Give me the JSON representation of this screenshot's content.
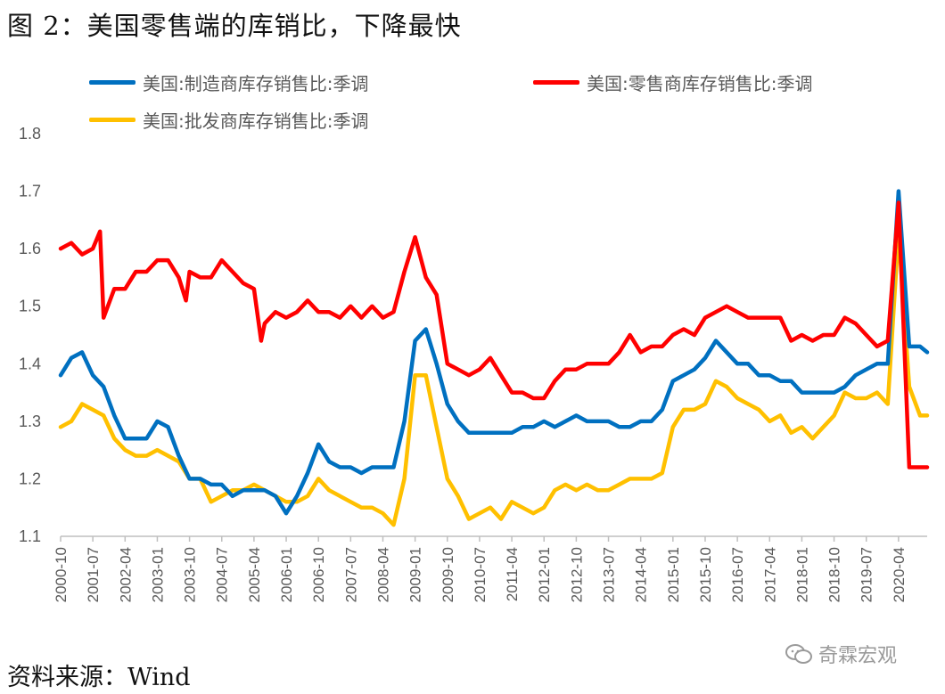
{
  "figure": {
    "title": "图 2：美国零售端的库销比，下降最快",
    "source": "资料来源：Wind",
    "watermark": "奇霖宏观"
  },
  "colors": {
    "manufacturing": "#0070C0",
    "retail": "#FF0000",
    "wholesale": "#FFC000",
    "axis": "#BFBFBF",
    "text": "#595959"
  },
  "chart_data": {
    "type": "line",
    "title": "美国零售端的库销比，下降最快",
    "xlabel": "",
    "ylabel": "",
    "ylim": [
      1.1,
      1.8
    ],
    "yticks": [
      "1.1",
      "1.2",
      "1.3",
      "1.4",
      "1.5",
      "1.6",
      "1.7",
      "1.8"
    ],
    "xticks": [
      "2000-10",
      "2001-07",
      "2002-04",
      "2003-01",
      "2003-10",
      "2004-07",
      "2005-04",
      "2006-01",
      "2006-10",
      "2007-07",
      "2008-04",
      "2009-01",
      "2009-10",
      "2010-07",
      "2011-04",
      "2012-01",
      "2012-10",
      "2013-07",
      "2014-04",
      "2015-01",
      "2015-10",
      "2016-07",
      "2017-04",
      "2018-01",
      "2018-10",
      "2019-07",
      "2020-04"
    ],
    "x_start": "2000-10",
    "x_end": "2020-12",
    "grid": false,
    "legend": "top",
    "series": [
      {
        "key": "manufacturing",
        "name": "美国:制造商库存销售比:季调",
        "points": [
          [
            "2000-10",
            1.38
          ],
          [
            "2001-01",
            1.41
          ],
          [
            "2001-04",
            1.42
          ],
          [
            "2001-07",
            1.38
          ],
          [
            "2001-10",
            1.36
          ],
          [
            "2002-01",
            1.31
          ],
          [
            "2002-04",
            1.27
          ],
          [
            "2002-07",
            1.27
          ],
          [
            "2002-10",
            1.27
          ],
          [
            "2003-01",
            1.3
          ],
          [
            "2003-04",
            1.29
          ],
          [
            "2003-07",
            1.24
          ],
          [
            "2003-10",
            1.2
          ],
          [
            "2004-01",
            1.2
          ],
          [
            "2004-04",
            1.19
          ],
          [
            "2004-07",
            1.19
          ],
          [
            "2004-10",
            1.17
          ],
          [
            "2005-01",
            1.18
          ],
          [
            "2005-04",
            1.18
          ],
          [
            "2005-07",
            1.18
          ],
          [
            "2005-10",
            1.17
          ],
          [
            "2006-01",
            1.14
          ],
          [
            "2006-04",
            1.17
          ],
          [
            "2006-07",
            1.21
          ],
          [
            "2006-10",
            1.26
          ],
          [
            "2007-01",
            1.23
          ],
          [
            "2007-04",
            1.22
          ],
          [
            "2007-07",
            1.22
          ],
          [
            "2007-10",
            1.21
          ],
          [
            "2008-01",
            1.22
          ],
          [
            "2008-04",
            1.22
          ],
          [
            "2008-07",
            1.22
          ],
          [
            "2008-10",
            1.3
          ],
          [
            "2009-01",
            1.44
          ],
          [
            "2009-04",
            1.46
          ],
          [
            "2009-07",
            1.4
          ],
          [
            "2009-10",
            1.33
          ],
          [
            "2010-01",
            1.3
          ],
          [
            "2010-04",
            1.28
          ],
          [
            "2010-07",
            1.28
          ],
          [
            "2010-10",
            1.28
          ],
          [
            "2011-01",
            1.28
          ],
          [
            "2011-04",
            1.28
          ],
          [
            "2011-07",
            1.29
          ],
          [
            "2011-10",
            1.29
          ],
          [
            "2012-01",
            1.3
          ],
          [
            "2012-04",
            1.29
          ],
          [
            "2012-07",
            1.3
          ],
          [
            "2012-10",
            1.31
          ],
          [
            "2013-01",
            1.3
          ],
          [
            "2013-04",
            1.3
          ],
          [
            "2013-07",
            1.3
          ],
          [
            "2013-10",
            1.29
          ],
          [
            "2014-01",
            1.29
          ],
          [
            "2014-04",
            1.3
          ],
          [
            "2014-07",
            1.3
          ],
          [
            "2014-10",
            1.32
          ],
          [
            "2015-01",
            1.37
          ],
          [
            "2015-04",
            1.38
          ],
          [
            "2015-07",
            1.39
          ],
          [
            "2015-10",
            1.41
          ],
          [
            "2016-01",
            1.44
          ],
          [
            "2016-04",
            1.42
          ],
          [
            "2016-07",
            1.4
          ],
          [
            "2016-10",
            1.4
          ],
          [
            "2017-01",
            1.38
          ],
          [
            "2017-04",
            1.38
          ],
          [
            "2017-07",
            1.37
          ],
          [
            "2017-10",
            1.37
          ],
          [
            "2018-01",
            1.35
          ],
          [
            "2018-04",
            1.35
          ],
          [
            "2018-07",
            1.35
          ],
          [
            "2018-10",
            1.35
          ],
          [
            "2019-01",
            1.36
          ],
          [
            "2019-04",
            1.38
          ],
          [
            "2019-07",
            1.39
          ],
          [
            "2019-10",
            1.4
          ],
          [
            "2020-01",
            1.4
          ],
          [
            "2020-04",
            1.7
          ],
          [
            "2020-07",
            1.43
          ],
          [
            "2020-10",
            1.43
          ],
          [
            "2020-12",
            1.42
          ]
        ]
      },
      {
        "key": "retail",
        "name": "美国:零售商库存销售比:季调",
        "points": [
          [
            "2000-10",
            1.6
          ],
          [
            "2001-01",
            1.61
          ],
          [
            "2001-04",
            1.59
          ],
          [
            "2001-07",
            1.6
          ],
          [
            "2001-09",
            1.63
          ],
          [
            "2001-10",
            1.48
          ],
          [
            "2002-01",
            1.53
          ],
          [
            "2002-04",
            1.53
          ],
          [
            "2002-07",
            1.56
          ],
          [
            "2002-10",
            1.56
          ],
          [
            "2003-01",
            1.58
          ],
          [
            "2003-04",
            1.58
          ],
          [
            "2003-07",
            1.55
          ],
          [
            "2003-09",
            1.51
          ],
          [
            "2003-10",
            1.56
          ],
          [
            "2004-01",
            1.55
          ],
          [
            "2004-04",
            1.55
          ],
          [
            "2004-07",
            1.58
          ],
          [
            "2004-10",
            1.56
          ],
          [
            "2005-01",
            1.54
          ],
          [
            "2005-04",
            1.53
          ],
          [
            "2005-06",
            1.44
          ],
          [
            "2005-07",
            1.47
          ],
          [
            "2005-10",
            1.49
          ],
          [
            "2006-01",
            1.48
          ],
          [
            "2006-04",
            1.49
          ],
          [
            "2006-07",
            1.51
          ],
          [
            "2006-10",
            1.49
          ],
          [
            "2007-01",
            1.49
          ],
          [
            "2007-04",
            1.48
          ],
          [
            "2007-07",
            1.5
          ],
          [
            "2007-10",
            1.48
          ],
          [
            "2008-01",
            1.5
          ],
          [
            "2008-04",
            1.48
          ],
          [
            "2008-07",
            1.49
          ],
          [
            "2008-10",
            1.56
          ],
          [
            "2009-01",
            1.62
          ],
          [
            "2009-04",
            1.55
          ],
          [
            "2009-07",
            1.52
          ],
          [
            "2009-10",
            1.4
          ],
          [
            "2010-01",
            1.39
          ],
          [
            "2010-04",
            1.38
          ],
          [
            "2010-07",
            1.39
          ],
          [
            "2010-10",
            1.41
          ],
          [
            "2011-01",
            1.38
          ],
          [
            "2011-04",
            1.35
          ],
          [
            "2011-07",
            1.35
          ],
          [
            "2011-10",
            1.34
          ],
          [
            "2012-01",
            1.34
          ],
          [
            "2012-04",
            1.37
          ],
          [
            "2012-07",
            1.39
          ],
          [
            "2012-10",
            1.39
          ],
          [
            "2013-01",
            1.4
          ],
          [
            "2013-04",
            1.4
          ],
          [
            "2013-07",
            1.4
          ],
          [
            "2013-10",
            1.42
          ],
          [
            "2014-01",
            1.45
          ],
          [
            "2014-04",
            1.42
          ],
          [
            "2014-07",
            1.43
          ],
          [
            "2014-10",
            1.43
          ],
          [
            "2015-01",
            1.45
          ],
          [
            "2015-04",
            1.46
          ],
          [
            "2015-07",
            1.45
          ],
          [
            "2015-10",
            1.48
          ],
          [
            "2016-01",
            1.49
          ],
          [
            "2016-04",
            1.5
          ],
          [
            "2016-07",
            1.49
          ],
          [
            "2016-10",
            1.48
          ],
          [
            "2017-01",
            1.48
          ],
          [
            "2017-04",
            1.48
          ],
          [
            "2017-07",
            1.48
          ],
          [
            "2017-10",
            1.44
          ],
          [
            "2018-01",
            1.45
          ],
          [
            "2018-04",
            1.44
          ],
          [
            "2018-07",
            1.45
          ],
          [
            "2018-10",
            1.45
          ],
          [
            "2019-01",
            1.48
          ],
          [
            "2019-04",
            1.47
          ],
          [
            "2019-07",
            1.45
          ],
          [
            "2019-10",
            1.43
          ],
          [
            "2020-01",
            1.44
          ],
          [
            "2020-04",
            1.68
          ],
          [
            "2020-07",
            1.22
          ],
          [
            "2020-10",
            1.22
          ],
          [
            "2020-12",
            1.22
          ]
        ]
      },
      {
        "key": "wholesale",
        "name": "美国:批发商库存销售比:季调",
        "points": [
          [
            "2000-10",
            1.29
          ],
          [
            "2001-01",
            1.3
          ],
          [
            "2001-04",
            1.33
          ],
          [
            "2001-07",
            1.32
          ],
          [
            "2001-10",
            1.31
          ],
          [
            "2002-01",
            1.27
          ],
          [
            "2002-04",
            1.25
          ],
          [
            "2002-07",
            1.24
          ],
          [
            "2002-10",
            1.24
          ],
          [
            "2003-01",
            1.25
          ],
          [
            "2003-04",
            1.24
          ],
          [
            "2003-07",
            1.23
          ],
          [
            "2003-10",
            1.2
          ],
          [
            "2004-01",
            1.2
          ],
          [
            "2004-04",
            1.16
          ],
          [
            "2004-07",
            1.17
          ],
          [
            "2004-10",
            1.18
          ],
          [
            "2005-01",
            1.18
          ],
          [
            "2005-04",
            1.19
          ],
          [
            "2005-07",
            1.18
          ],
          [
            "2005-10",
            1.17
          ],
          [
            "2006-01",
            1.16
          ],
          [
            "2006-04",
            1.16
          ],
          [
            "2006-07",
            1.17
          ],
          [
            "2006-10",
            1.2
          ],
          [
            "2007-01",
            1.18
          ],
          [
            "2007-04",
            1.17
          ],
          [
            "2007-07",
            1.16
          ],
          [
            "2007-10",
            1.15
          ],
          [
            "2008-01",
            1.15
          ],
          [
            "2008-04",
            1.14
          ],
          [
            "2008-07",
            1.12
          ],
          [
            "2008-10",
            1.2
          ],
          [
            "2009-01",
            1.38
          ],
          [
            "2009-04",
            1.38
          ],
          [
            "2009-07",
            1.29
          ],
          [
            "2009-10",
            1.2
          ],
          [
            "2010-01",
            1.17
          ],
          [
            "2010-04",
            1.13
          ],
          [
            "2010-07",
            1.14
          ],
          [
            "2010-10",
            1.15
          ],
          [
            "2011-01",
            1.13
          ],
          [
            "2011-04",
            1.16
          ],
          [
            "2011-07",
            1.15
          ],
          [
            "2011-10",
            1.14
          ],
          [
            "2012-01",
            1.15
          ],
          [
            "2012-04",
            1.18
          ],
          [
            "2012-07",
            1.19
          ],
          [
            "2012-10",
            1.18
          ],
          [
            "2013-01",
            1.19
          ],
          [
            "2013-04",
            1.18
          ],
          [
            "2013-07",
            1.18
          ],
          [
            "2013-10",
            1.19
          ],
          [
            "2014-01",
            1.2
          ],
          [
            "2014-04",
            1.2
          ],
          [
            "2014-07",
            1.2
          ],
          [
            "2014-10",
            1.21
          ],
          [
            "2015-01",
            1.29
          ],
          [
            "2015-04",
            1.32
          ],
          [
            "2015-07",
            1.32
          ],
          [
            "2015-10",
            1.33
          ],
          [
            "2016-01",
            1.37
          ],
          [
            "2016-04",
            1.36
          ],
          [
            "2016-07",
            1.34
          ],
          [
            "2016-10",
            1.33
          ],
          [
            "2017-01",
            1.32
          ],
          [
            "2017-04",
            1.3
          ],
          [
            "2017-07",
            1.31
          ],
          [
            "2017-10",
            1.28
          ],
          [
            "2018-01",
            1.29
          ],
          [
            "2018-04",
            1.27
          ],
          [
            "2018-07",
            1.29
          ],
          [
            "2018-10",
            1.31
          ],
          [
            "2019-01",
            1.35
          ],
          [
            "2019-04",
            1.34
          ],
          [
            "2019-07",
            1.34
          ],
          [
            "2019-10",
            1.35
          ],
          [
            "2020-01",
            1.33
          ],
          [
            "2020-04",
            1.63
          ],
          [
            "2020-07",
            1.36
          ],
          [
            "2020-10",
            1.31
          ],
          [
            "2020-12",
            1.31
          ]
        ]
      }
    ]
  }
}
